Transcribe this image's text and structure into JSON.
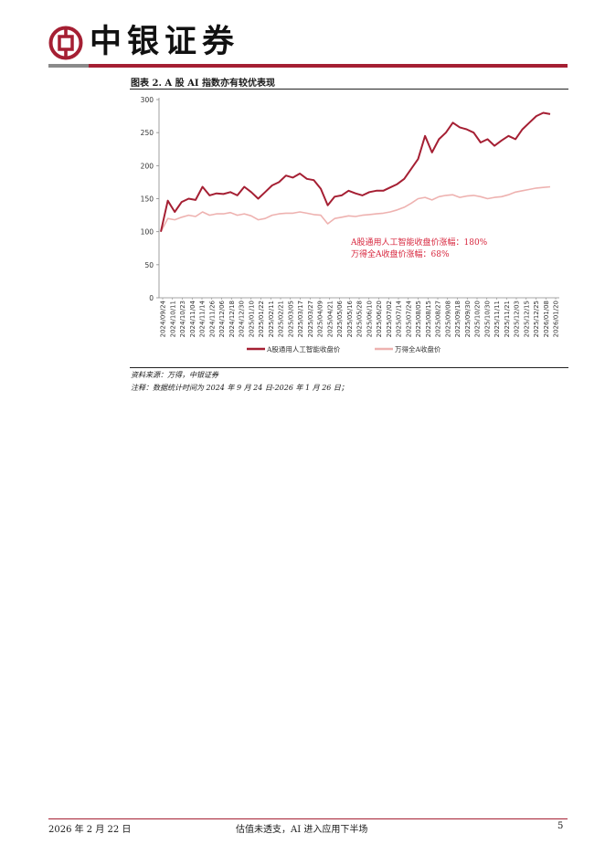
{
  "header": {
    "brand": "中银证券"
  },
  "figure": {
    "title": "图表 2. A 股 AI 指数亦有较优表现",
    "source": "资料来源：万得，中银证券",
    "note": "注释：数据统计时间为 2024 年 9 月 24 日-2026 年 1 月 26 日；"
  },
  "chart_data": {
    "type": "line",
    "title": "",
    "xlabel": "",
    "ylabel": "",
    "ylim": [
      0,
      300
    ],
    "yticks": [
      0,
      50,
      100,
      150,
      200,
      250,
      300
    ],
    "grid": false,
    "legend_position": "bottom",
    "x_tick_labels": [
      "2024/09/24",
      "2024/10/11",
      "2024/10/23",
      "2024/11/04",
      "2024/11/14",
      "2024/11/26",
      "2024/12/06",
      "2024/12/18",
      "2024/12/30",
      "2025/01/10",
      "2025/01/22",
      "2025/02/11",
      "2025/02/21",
      "2025/03/05",
      "2025/03/17",
      "2025/03/27",
      "2025/04/09",
      "2025/04/21",
      "2025/05/06",
      "2025/05/16",
      "2025/05/28",
      "2025/06/10",
      "2025/06/20",
      "2025/07/02",
      "2025/07/14",
      "2025/07/24",
      "2025/08/05",
      "2025/08/15",
      "2025/08/27",
      "2025/09/08",
      "2025/09/18",
      "2025/09/30",
      "2025/10/20",
      "2025/10/30",
      "2025/11/11",
      "2025/11/21",
      "2025/12/03",
      "2025/12/15",
      "2025/12/25",
      "2026/01/08",
      "2026/01/20"
    ],
    "series": [
      {
        "name": "A股通用人工智能收盘价",
        "color": "#a51f33",
        "values": [
          100,
          147,
          130,
          145,
          150,
          148,
          168,
          155,
          158,
          157,
          160,
          155,
          168,
          160,
          150,
          160,
          170,
          175,
          185,
          182,
          188,
          180,
          178,
          165,
          140,
          153,
          155,
          162,
          158,
          155,
          160,
          162,
          162,
          167,
          172,
          180,
          195,
          210,
          245,
          220,
          240,
          250,
          265,
          258,
          255,
          250,
          235,
          240,
          230,
          238,
          245,
          240,
          255,
          265,
          275,
          280,
          278
        ]
      },
      {
        "name": "万得全A收盘价",
        "color": "#eeb2b0",
        "values": [
          100,
          120,
          118,
          122,
          125,
          123,
          130,
          125,
          127,
          127,
          129,
          125,
          127,
          124,
          118,
          120,
          125,
          127,
          128,
          128,
          130,
          128,
          126,
          125,
          112,
          120,
          122,
          124,
          123,
          125,
          126,
          127,
          128,
          130,
          133,
          137,
          143,
          150,
          152,
          148,
          153,
          155,
          156,
          152,
          154,
          155,
          153,
          150,
          152,
          153,
          156,
          160,
          162,
          164,
          166,
          167,
          168
        ]
      }
    ],
    "annotations": [
      "A股通用人工智能收盘价涨幅：180%",
      "万得全A收盘价涨幅：68%"
    ],
    "annotation_color": "#d7263d"
  },
  "footer": {
    "date": "2026 年 2 月 22 日",
    "title": "估值未透支，AI 进入应用下半场",
    "page": "5"
  }
}
